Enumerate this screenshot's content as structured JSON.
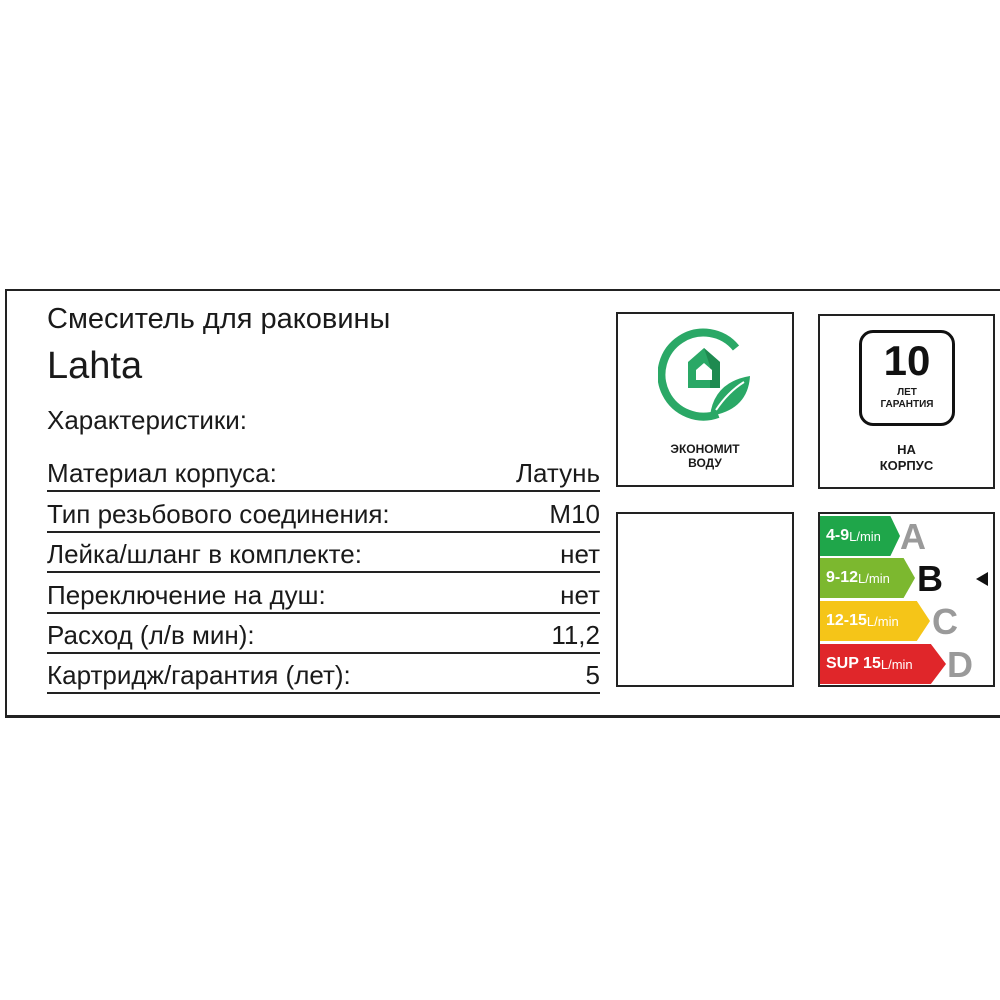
{
  "title": "Смеситель для раковины",
  "brand": "Lahta",
  "section": "Характеристики:",
  "specs": [
    {
      "label": "Материал корпуса:",
      "value": "Латунь"
    },
    {
      "label": "Тип резьбового соединения:",
      "value": "M10"
    },
    {
      "label": "Лейка/шланг в комплекте:",
      "value": "нет"
    },
    {
      "label": "Переключение на душ:",
      "value": "нет"
    },
    {
      "label": "Расход (л/в мин):",
      "value": "11,2"
    },
    {
      "label": "Картридж/гарантия (лет):",
      "value": "5"
    }
  ],
  "eco": {
    "line1": "ЭКОНОМИТ",
    "line2": "ВОДУ",
    "icon": "house-leaf-icon",
    "color": "#2aa866"
  },
  "warranty": {
    "years": "10",
    "line1": "ЛЕТ",
    "line2": "ГАРАНТИЯ",
    "on1": "НА",
    "on2": "КОРПУС"
  },
  "energy": {
    "selected": "B",
    "classes": [
      {
        "range": "4-9",
        "unit": "L/min",
        "letter": "A",
        "color": "#1fa64a"
      },
      {
        "range": "9-12",
        "unit": "L/min",
        "letter": "B",
        "color": "#7cb82f"
      },
      {
        "range": "12-15",
        "unit": "L/min",
        "letter": "C",
        "color": "#f5c518"
      },
      {
        "range": "SUP 15",
        "unit": "L/min",
        "letter": "D",
        "color": "#e0262a"
      }
    ]
  }
}
